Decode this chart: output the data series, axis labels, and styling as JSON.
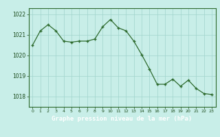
{
  "x": [
    0,
    1,
    2,
    3,
    4,
    5,
    6,
    7,
    8,
    9,
    10,
    11,
    12,
    13,
    14,
    15,
    16,
    17,
    18,
    19,
    20,
    21,
    22,
    23
  ],
  "y": [
    1020.5,
    1021.2,
    1021.5,
    1021.2,
    1020.7,
    1020.65,
    1020.7,
    1020.7,
    1020.8,
    1021.4,
    1021.75,
    1021.35,
    1021.2,
    1020.7,
    1020.05,
    1019.35,
    1018.6,
    1018.6,
    1018.85,
    1018.5,
    1018.8,
    1018.4,
    1018.15,
    1018.1
  ],
  "line_color": "#2d6a2d",
  "marker_color": "#2d6a2d",
  "bg_color": "#c8eee8",
  "plot_bg_color": "#c8eee8",
  "grid_color": "#a0d4cc",
  "xlabel": "Graphe pression niveau de la mer (hPa)",
  "xlabel_color": "#1a4a1a",
  "tick_color": "#1a4a1a",
  "axis_color": "#2d6a2d",
  "bottom_bar_color": "#2d6a2d",
  "ylim": [
    1017.5,
    1022.3
  ],
  "yticks": [
    1018,
    1019,
    1020,
    1021,
    1022
  ],
  "xticks": [
    0,
    1,
    2,
    3,
    4,
    5,
    6,
    7,
    8,
    9,
    10,
    11,
    12,
    13,
    14,
    15,
    16,
    17,
    18,
    19,
    20,
    21,
    22,
    23
  ],
  "xtick_labels": [
    "0",
    "1",
    "2",
    "3",
    "4",
    "5",
    "6",
    "7",
    "8",
    "9",
    "10",
    "11",
    "12",
    "13",
    "14",
    "15",
    "16",
    "17",
    "18",
    "19",
    "20",
    "21",
    "22",
    "23"
  ]
}
